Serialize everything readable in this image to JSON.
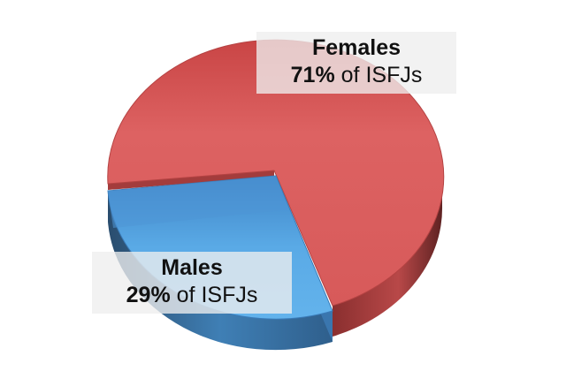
{
  "chart_data": {
    "type": "pie",
    "style": "3d",
    "title": "",
    "slices": [
      {
        "name": "Females",
        "value": 71,
        "percent_label": "71%",
        "suffix": "of ISFJs",
        "color": "#d95f5f",
        "exploded": false
      },
      {
        "name": "Males",
        "value": 29,
        "percent_label": "29%",
        "suffix": "of ISFJs",
        "color": "#4f95d6",
        "exploded": true
      }
    ],
    "legend": "none"
  }
}
